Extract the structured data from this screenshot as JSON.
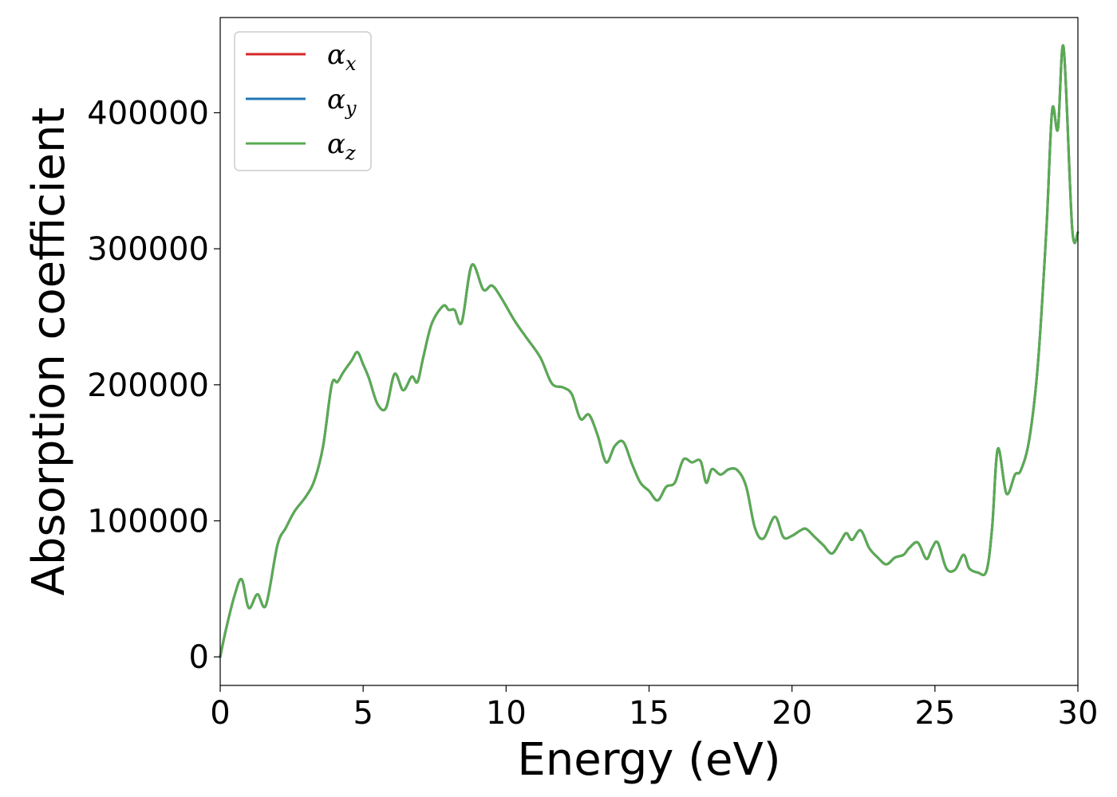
{
  "chart_data": {
    "type": "line",
    "xlabel": "Energy (eV)",
    "ylabel": "Absorption coefficient",
    "xlim": [
      0,
      30
    ],
    "ylim": [
      -21000,
      470000
    ],
    "xticks": [
      0,
      5,
      10,
      15,
      20,
      25,
      30
    ],
    "xtick_labels": [
      "0",
      "5",
      "10",
      "15",
      "20",
      "25",
      "30"
    ],
    "yticks": [
      0,
      100000,
      200000,
      300000,
      400000
    ],
    "ytick_labels": [
      "0",
      "100000",
      "200000",
      "300000",
      "400000"
    ],
    "grid": false,
    "legend_position": "top-left",
    "x": [
      0,
      0.2,
      0.5,
      0.75,
      1.0,
      1.3,
      1.6,
      2.0,
      2.3,
      2.6,
      3.0,
      3.3,
      3.6,
      3.9,
      4.1,
      4.3,
      4.6,
      4.8,
      5.0,
      5.2,
      5.5,
      5.8,
      6.1,
      6.4,
      6.7,
      6.9,
      7.1,
      7.4,
      7.8,
      8.0,
      8.2,
      8.45,
      8.8,
      9.2,
      9.5,
      9.8,
      10.3,
      10.7,
      11.2,
      11.6,
      12.0,
      12.3,
      12.6,
      12.9,
      13.2,
      13.5,
      13.8,
      14.1,
      14.4,
      14.7,
      15.0,
      15.3,
      15.6,
      15.9,
      16.2,
      16.5,
      16.8,
      17.0,
      17.2,
      17.5,
      17.8,
      18.1,
      18.4,
      18.7,
      19.0,
      19.4,
      19.7,
      20.0,
      20.3,
      20.5,
      20.8,
      21.1,
      21.4,
      21.7,
      21.9,
      22.1,
      22.4,
      22.7,
      23.0,
      23.3,
      23.6,
      23.9,
      24.1,
      24.4,
      24.7,
      24.9,
      25.1,
      25.4,
      25.7,
      26.0,
      26.2,
      26.5,
      26.8,
      27.0,
      27.2,
      27.5,
      27.8,
      28.0,
      28.3,
      28.6,
      28.9,
      29.1,
      29.3,
      29.5,
      29.8,
      30.0
    ],
    "series": [
      {
        "name": "x",
        "color": "#d62728",
        "values": [
          0,
          20000,
          45000,
          57000,
          36000,
          46000,
          38000,
          82000,
          95000,
          107000,
          118000,
          130000,
          155000,
          200000,
          202000,
          209000,
          218000,
          224000,
          215000,
          205000,
          186000,
          183000,
          208000,
          196000,
          206000,
          202000,
          220000,
          245000,
          258000,
          255000,
          255000,
          246000,
          288000,
          270000,
          273000,
          265000,
          247000,
          235000,
          220000,
          201000,
          198000,
          193000,
          175000,
          178000,
          163000,
          143000,
          155000,
          158000,
          142000,
          128000,
          122000,
          115000,
          125000,
          128000,
          145000,
          143000,
          144000,
          128000,
          138000,
          134000,
          138000,
          137000,
          125000,
          95000,
          87000,
          103000,
          88000,
          89000,
          93000,
          94000,
          88000,
          82000,
          76000,
          85000,
          91000,
          86000,
          93000,
          80000,
          73000,
          68000,
          73000,
          75000,
          80000,
          84000,
          72000,
          80000,
          84000,
          65000,
          64000,
          75000,
          65000,
          62000,
          63000,
          95000,
          153000,
          120000,
          134000,
          137000,
          160000,
          215000,
          315000,
          402000,
          388000,
          448000,
          315000,
          312000
        ]
      },
      {
        "name": "y",
        "color": "#1f77b4",
        "values": [
          0,
          20000,
          45000,
          57000,
          36000,
          46000,
          38000,
          82000,
          95000,
          107000,
          118000,
          130000,
          155000,
          200000,
          202000,
          209000,
          218000,
          224000,
          215000,
          205000,
          186000,
          183000,
          208000,
          196000,
          206000,
          202000,
          220000,
          245000,
          258000,
          255000,
          255000,
          246000,
          288000,
          270000,
          273000,
          265000,
          247000,
          235000,
          220000,
          201000,
          198000,
          193000,
          175000,
          178000,
          163000,
          143000,
          155000,
          158000,
          142000,
          128000,
          122000,
          115000,
          125000,
          128000,
          145000,
          143000,
          144000,
          128000,
          138000,
          134000,
          138000,
          137000,
          125000,
          95000,
          87000,
          103000,
          88000,
          89000,
          93000,
          94000,
          88000,
          82000,
          76000,
          85000,
          91000,
          86000,
          93000,
          80000,
          73000,
          68000,
          73000,
          75000,
          80000,
          84000,
          72000,
          80000,
          84000,
          65000,
          64000,
          75000,
          65000,
          62000,
          63000,
          95000,
          153000,
          120000,
          134000,
          137000,
          160000,
          215000,
          315000,
          402000,
          388000,
          448000,
          315000,
          312000
        ]
      },
      {
        "name": "z",
        "color": "#5aab52",
        "values": [
          0,
          20000,
          45000,
          57000,
          36000,
          46000,
          38000,
          82000,
          95000,
          107000,
          118000,
          130000,
          155000,
          200000,
          202000,
          209000,
          218000,
          224000,
          215000,
          205000,
          186000,
          183000,
          208000,
          196000,
          206000,
          202000,
          220000,
          245000,
          258000,
          255000,
          255000,
          246000,
          288000,
          270000,
          273000,
          265000,
          247000,
          235000,
          220000,
          201000,
          198000,
          193000,
          175000,
          178000,
          163000,
          143000,
          155000,
          158000,
          142000,
          128000,
          122000,
          115000,
          125000,
          128000,
          145000,
          143000,
          144000,
          128000,
          138000,
          134000,
          138000,
          137000,
          125000,
          95000,
          87000,
          103000,
          88000,
          89000,
          93000,
          94000,
          88000,
          82000,
          76000,
          85000,
          91000,
          86000,
          93000,
          80000,
          73000,
          68000,
          73000,
          75000,
          80000,
          84000,
          72000,
          80000,
          84000,
          65000,
          64000,
          75000,
          65000,
          62000,
          63000,
          95000,
          153000,
          120000,
          134000,
          137000,
          160000,
          215000,
          315000,
          402000,
          388000,
          448000,
          315000,
          312000
        ]
      }
    ],
    "legend": [
      {
        "symbol": "α",
        "sub": "x",
        "color": "#d62728"
      },
      {
        "symbol": "α",
        "sub": "y",
        "color": "#1f77b4"
      },
      {
        "symbol": "α",
        "sub": "z",
        "color": "#5aab52"
      }
    ]
  }
}
